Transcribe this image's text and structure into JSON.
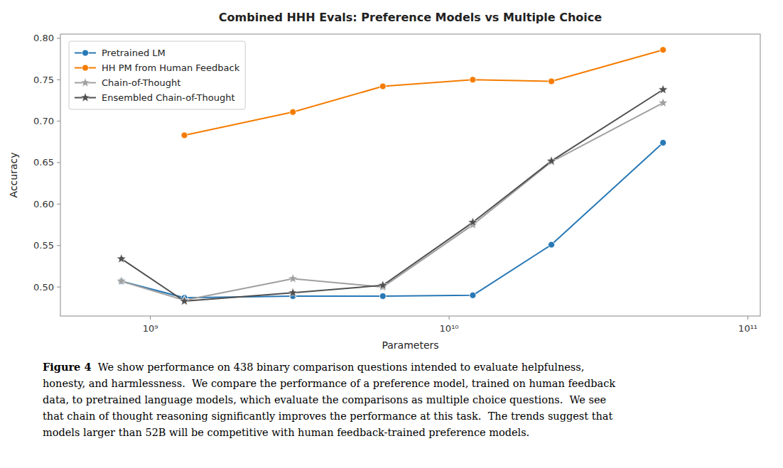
{
  "chart_data": {
    "type": "line",
    "title": "Combined HHH Evals: Preference Models vs Multiple Choice",
    "x_label": "Parameters",
    "y_label": "Accuracy",
    "log": "x",
    "grid": false,
    "legend": "upper left",
    "x": [
      800000000,
      1300000000,
      3000000000,
      6000000000,
      12000000000,
      22000000000,
      52000000000
    ],
    "xlim": [
      500000000,
      110000000000
    ],
    "xticks": [
      {
        "value": 1000000000,
        "label": "10⁹"
      },
      {
        "value": 10000000000,
        "label": "10¹⁰"
      },
      {
        "value": 100000000000,
        "label": "10¹¹"
      }
    ],
    "ylim": [
      0.465,
      0.805
    ],
    "yticks": [
      {
        "value": 0.5,
        "label": "0.50"
      },
      0.55,
      {
        "value": 0.6,
        "label": "0.60"
      },
      0.65,
      {
        "value": 0.7,
        "label": "0.70"
      },
      0.75,
      {
        "value": 0.8,
        "label": "0.80"
      }
    ],
    "series": [
      {
        "name": "Pretrained LM",
        "color": "#2878b5",
        "marker": "circle",
        "line_style": "solid",
        "values": [
          0.507,
          0.487,
          0.489,
          0.489,
          0.49,
          0.551,
          0.674
        ]
      },
      {
        "name": "HH PM from Human Feedback",
        "color": "#f57c00",
        "marker": "circle",
        "line_style": "solid",
        "values": [
          null,
          0.683,
          0.711,
          0.742,
          0.75,
          0.748,
          0.786
        ]
      },
      {
        "name": "Chain-of-Thought",
        "color": "#a0a0a0",
        "marker": "star",
        "line_style": "solid",
        "values": [
          0.507,
          0.484,
          0.51,
          0.5,
          0.575,
          0.651,
          0.722
        ]
      },
      {
        "name": "Ensembled Chain-of-Thought",
        "color": "#505050",
        "marker": "star",
        "line_style": "solid",
        "values": [
          0.534,
          0.483,
          0.493,
          0.502,
          0.578,
          0.652,
          0.738
        ]
      }
    ],
    "caption_label": "Figure 4",
    "caption": [
      "  We show performance on 438 binary comparison questions intended to evaluate helpfulness,",
      "honesty, and harmlessness.  We compare the performance of a preference model, trained on human feedback",
      "data, to pretrained language models, which evaluate the comparisons as multiple choice questions.  We see",
      "that chain of thought reasoning significantly improves the performance at this task.  The trends suggest that",
      "models larger than 52B will be competitive with human feedback-trained preference models."
    ]
  }
}
